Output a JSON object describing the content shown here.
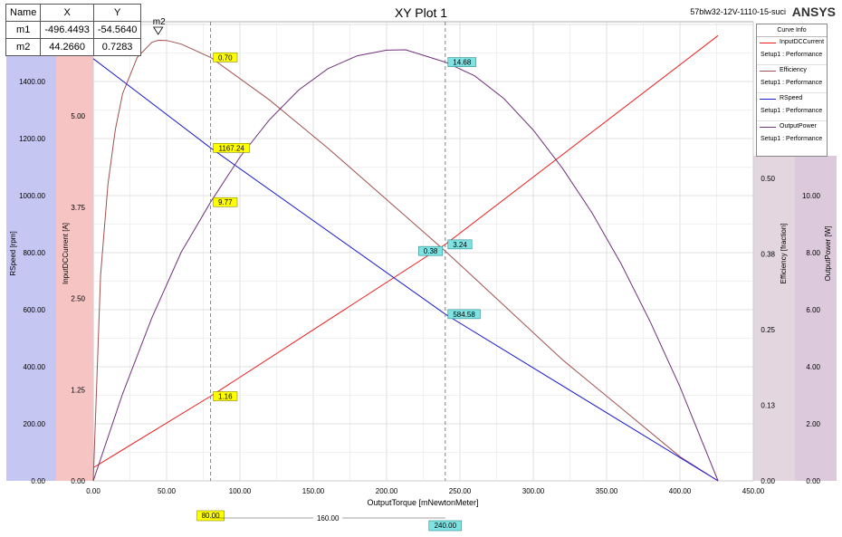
{
  "header": {
    "title": "XY Plot 1",
    "design_name": "57blw32-12V-1110-15-suci",
    "brand": "ANSYS"
  },
  "marker_table": {
    "headers": [
      "Name",
      "X",
      "Y"
    ],
    "rows": [
      [
        "m1",
        "-496.4493",
        "-54.5640"
      ],
      [
        "m2",
        "44.2660",
        "0.7283"
      ]
    ]
  },
  "legend": {
    "title": "Curve Info",
    "entries": [
      {
        "name": "InputDCCurrent",
        "source": "Setup1 : Performance",
        "color": "#ee1c1c"
      },
      {
        "name": "Efficiency",
        "source": "Setup1 : Performance",
        "color": "#a05050"
      },
      {
        "name": "RSpeed",
        "source": "Setup1 : Performance",
        "color": "#1c1cd0"
      },
      {
        "name": "OutputPower",
        "source": "Setup1 : Performance",
        "color": "#70307a"
      }
    ]
  },
  "chart_data": {
    "type": "line",
    "xlabel": "OutputTorque [mNewtonMeter]",
    "xlim": [
      0,
      450
    ],
    "x_ticks": [
      "0.00",
      "50.00",
      "100.00",
      "150.00",
      "200.00",
      "250.00",
      "300.00",
      "350.00",
      "400.00",
      "450.00"
    ],
    "axes": {
      "RSpeed": {
        "label": "RSpeed [rpm]",
        "lim": [
          0,
          1600
        ],
        "ticks": [
          "0.00",
          "200.00",
          "400.00",
          "600.00",
          "800.00",
          "1000.00",
          "1200.00",
          "1400.00"
        ]
      },
      "InputDCCurrent": {
        "label": "InputDCCurrent [A]",
        "lim": [
          0,
          6.25
        ],
        "ticks": [
          "0.00",
          "1.25",
          "2.50",
          "3.75",
          "5.00"
        ]
      },
      "Efficiency": {
        "label": "Efficiency [fraction]",
        "lim": [
          0,
          0.76
        ],
        "ticks": [
          "0.00",
          "0.13",
          "0.25",
          "0.38",
          "0.50"
        ]
      },
      "OutputPower": {
        "label": "OutputPower [W]",
        "lim": [
          0,
          16
        ],
        "ticks": [
          "0.00",
          "2.00",
          "4.00",
          "6.00",
          "8.00",
          "10.00"
        ]
      }
    },
    "series": [
      {
        "name": "InputDCCurrent",
        "axis": "InputDCCurrent",
        "x": [
          0,
          80,
          240,
          426
        ],
        "y": [
          0.18,
          1.16,
          3.24,
          6.1
        ]
      },
      {
        "name": "Efficiency",
        "axis": "Efficiency",
        "x": [
          0,
          5,
          10,
          15,
          20,
          30,
          40,
          44.266,
          50,
          60,
          80,
          120,
          160,
          200,
          240,
          280,
          320,
          360,
          400,
          426
        ],
        "y": [
          0.0,
          0.34,
          0.49,
          0.58,
          0.64,
          0.7,
          0.725,
          0.7283,
          0.728,
          0.722,
          0.7,
          0.63,
          0.55,
          0.465,
          0.38,
          0.29,
          0.2,
          0.12,
          0.04,
          0.0
        ]
      },
      {
        "name": "RSpeed",
        "axis": "RSpeed",
        "x": [
          0,
          80,
          240,
          426
        ],
        "y": [
          1480,
          1167.24,
          584.58,
          0
        ]
      },
      {
        "name": "OutputPower",
        "axis": "OutputPower",
        "x": [
          0,
          20,
          40,
          60,
          80,
          100,
          120,
          140,
          160,
          180,
          200,
          213,
          240,
          260,
          280,
          300,
          320,
          340,
          360,
          380,
          400,
          426
        ],
        "y": [
          0,
          3.05,
          5.72,
          8.02,
          9.77,
          11.35,
          12.65,
          13.7,
          14.45,
          14.9,
          15.1,
          15.11,
          14.68,
          14.2,
          13.4,
          12.3,
          10.95,
          9.4,
          7.6,
          5.55,
          3.3,
          0
        ]
      }
    ],
    "cursor_lines": [
      {
        "x": 80,
        "label": "80.00",
        "callouts": [
          {
            "series": "Efficiency",
            "text": "0.70"
          },
          {
            "series": "RSpeed",
            "text": "1167.24"
          },
          {
            "series": "OutputPower",
            "text": "9.77"
          },
          {
            "series": "InputDCCurrent",
            "text": "1.16"
          }
        ]
      },
      {
        "x": 240,
        "label": "240.00",
        "callouts": [
          {
            "series": "OutputPower",
            "text": "14.68"
          },
          {
            "series": "InputDCCurrent",
            "text": "3.24"
          },
          {
            "series": "Efficiency",
            "text": "0.38"
          },
          {
            "series": "RSpeed",
            "text": "584.58"
          }
        ]
      }
    ],
    "cursor_delta": "160.00",
    "marker": {
      "name": "m2",
      "series": "Efficiency",
      "x": 44.266,
      "y": 0.7283
    }
  }
}
